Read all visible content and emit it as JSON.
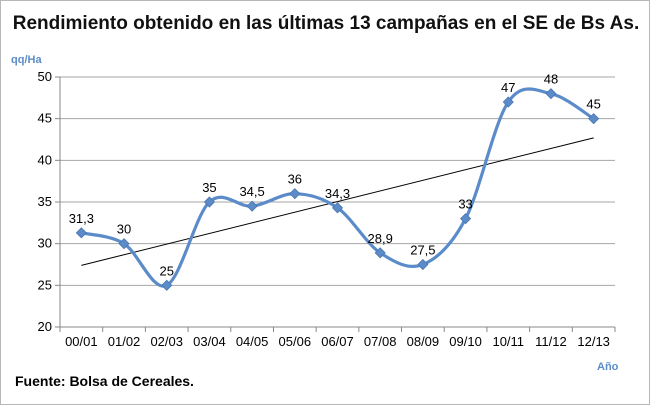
{
  "chart_data": {
    "type": "line",
    "title": "Rendimiento obtenido en las últimas 13 campañas en el SE de Bs As.",
    "ylabel": "qq/Ha",
    "xlabel": "Año",
    "source": "Fuente: Bolsa de Cereales.",
    "categories": [
      "00/01",
      "01/02",
      "02/03",
      "03/04",
      "04/05",
      "05/06",
      "06/07",
      "07/08",
      "08/09",
      "09/10",
      "10/11",
      "11/12",
      "12/13"
    ],
    "series": [
      {
        "name": "Rendimiento",
        "values": [
          31.3,
          30,
          25,
          35,
          34.5,
          36,
          34.3,
          28.9,
          27.5,
          33,
          47,
          48,
          45
        ],
        "labels": [
          "31,3",
          "30",
          "25",
          "35",
          "34,5",
          "36",
          "34,3",
          "28,9",
          "27,5",
          "33",
          "47",
          "48",
          "45"
        ],
        "color": "#5b8cc9",
        "smooth": true
      }
    ],
    "trendline": {
      "start": 27.4,
      "end": 42.7,
      "color": "#000000"
    },
    "ylim": [
      20,
      50
    ],
    "yticks": [
      20,
      25,
      30,
      35,
      40,
      45,
      50
    ],
    "grid": true,
    "gridColor": "#a6a6a6"
  }
}
